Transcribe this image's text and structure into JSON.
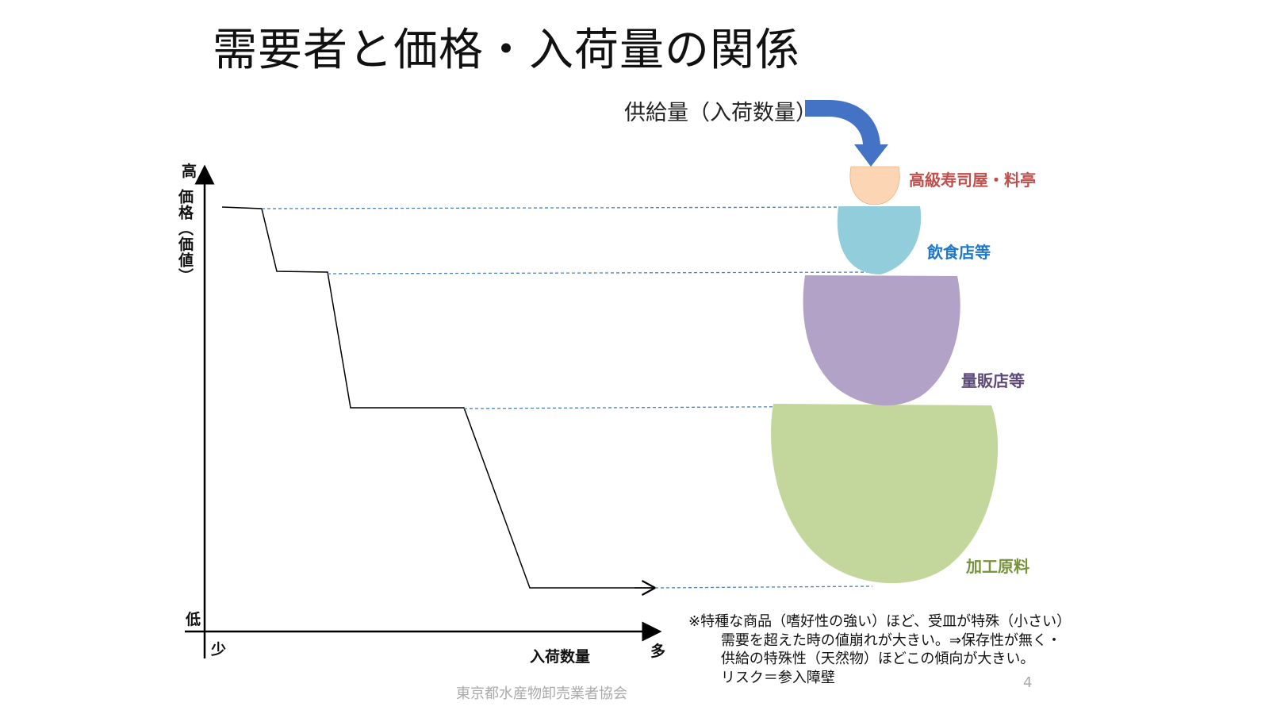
{
  "title": "需要者と価格・入荷量の関係",
  "supply_label": "供給量（入荷数量）",
  "axes": {
    "y_high": "高",
    "y_low": "低",
    "y_title": "価格（価値）",
    "x_low": "少",
    "x_high": "多",
    "x_title": "入荷数量"
  },
  "segments": [
    {
      "label": "高級寿司屋・料亭",
      "color": "#c0504d",
      "fill": "#fcd5b4"
    },
    {
      "label": "飲食店等",
      "color": "#1f78c8",
      "fill": "#92cddc"
    },
    {
      "label": "量販店等",
      "color": "#5f497a",
      "fill": "#b3a2c7"
    },
    {
      "label": "加工原料",
      "color": "#77933c",
      "fill": "#c3d69b"
    }
  ],
  "note": {
    "line1": "※特種な商品（嗜好性の強い）ほど、受皿が特殊（小さい）",
    "line2": "需要を超えた時の値崩れが大きい。⇒保存性が無く・",
    "line3": "供給の特殊性（天然物）ほどこの傾向が大きい。",
    "line4": "リスク＝参入障壁"
  },
  "footer": "東京都水産物卸売業者協会",
  "page_number": "4",
  "colors": {
    "arrow": "#4472c4",
    "dashed": "#4f81bd",
    "curve": "#000000"
  }
}
